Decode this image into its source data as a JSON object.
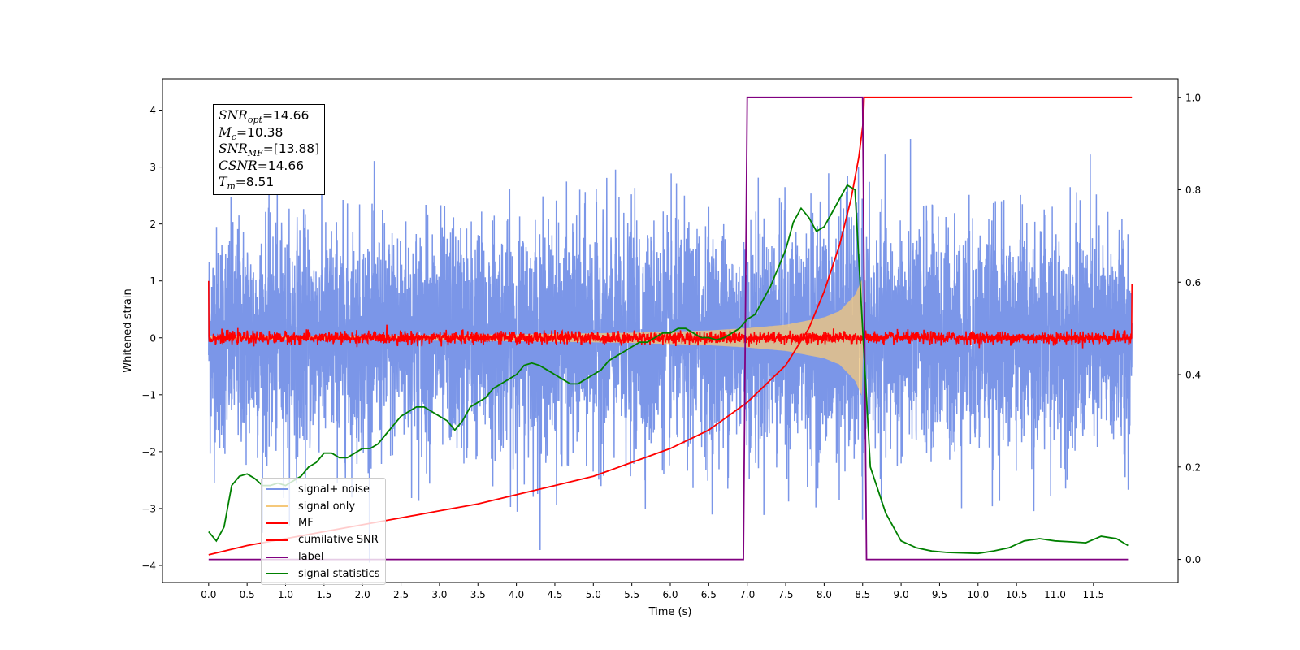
{
  "chart_data": {
    "type": "line",
    "xlabel": "Time (s)",
    "ylabel": "Whitened strain",
    "xlim": [
      -0.6,
      12.6
    ],
    "ylim": [
      -4.3,
      4.55
    ],
    "y2lim": [
      -0.05,
      1.04
    ],
    "xticks": [
      0.0,
      0.5,
      1.0,
      1.5,
      2.0,
      2.5,
      3.0,
      3.5,
      4.0,
      4.5,
      5.0,
      5.5,
      6.0,
      6.5,
      7.0,
      7.5,
      8.0,
      8.5,
      9.0,
      9.5,
      10.0,
      10.5,
      11.0,
      11.5
    ],
    "xtick_labels": [
      "0.0",
      "0.5",
      "1.0",
      "1.5",
      "2.0",
      "2.5",
      "3.0",
      "3.5",
      "4.0",
      "4.5",
      "5.0",
      "5.5",
      "6.0",
      "6.5",
      "7.0",
      "7.5",
      "8.0",
      "8.5",
      "9.0",
      "9.5",
      "10.0",
      "10.5",
      "11.0",
      "11.5"
    ],
    "yticks": [
      -4,
      -3,
      -2,
      -1,
      0,
      1,
      2,
      3,
      4
    ],
    "ytick_labels": [
      "−4",
      "−3",
      "−2",
      "−1",
      "0",
      "1",
      "2",
      "3",
      "4"
    ],
    "y2ticks": [
      0.0,
      0.2,
      0.4,
      0.6,
      0.8,
      1.0
    ],
    "y2tick_labels": [
      "0.0",
      "0.2",
      "0.4",
      "0.6",
      "0.8",
      "1.0"
    ],
    "stats": [
      {
        "base": "SNR",
        "sub": "opt",
        "value": "=14.66"
      },
      {
        "base": "M",
        "sub": "c",
        "value": "=10.38"
      },
      {
        "base": "SNR",
        "sub": "MF",
        "value": "=[13.88]"
      },
      {
        "base": "CSNR",
        "sub": "",
        "value": "=14.66"
      },
      {
        "base": "T",
        "sub": "m",
        "value": "=8.51"
      }
    ],
    "legend_position": "lower-left",
    "series": [
      {
        "name": "signal+ noise",
        "color": "#7b96e8",
        "axis": "left",
        "description_values": {
          "x_range": [
            0.0,
            12.0
          ],
          "typical_amplitude": 1.3,
          "peak_max": 4.1,
          "peak_min": -3.95
        }
      },
      {
        "name": "signal only",
        "color": "#f5c87a",
        "axis": "left",
        "envelope": {
          "x": [
            0.0,
            2.0,
            4.0,
            5.5,
            6.5,
            7.0,
            7.5,
            8.0,
            8.2,
            8.4,
            8.5,
            8.51
          ],
          "amplitude": [
            0.03,
            0.04,
            0.06,
            0.09,
            0.13,
            0.17,
            0.23,
            0.36,
            0.47,
            0.75,
            1.05,
            0.0
          ]
        }
      },
      {
        "name": "MF",
        "color": "#ff0000",
        "axis": "left",
        "description_values": {
          "baseline": 0.0,
          "noise_amplitude": 0.12,
          "start_value": 1.0,
          "end_value": 0.95
        }
      },
      {
        "name": "cumilative SNR",
        "color": "#ff0000",
        "axis": "right",
        "x": [
          0.0,
          0.5,
          1.0,
          1.5,
          2.0,
          2.5,
          3.0,
          3.5,
          4.0,
          4.5,
          5.0,
          5.5,
          6.0,
          6.5,
          7.0,
          7.5,
          7.8,
          8.0,
          8.2,
          8.35,
          8.45,
          8.51,
          8.52,
          12.0
        ],
        "y": [
          0.01,
          0.03,
          0.045,
          0.06,
          0.075,
          0.09,
          0.105,
          0.12,
          0.14,
          0.16,
          0.18,
          0.21,
          0.24,
          0.28,
          0.34,
          0.42,
          0.5,
          0.58,
          0.68,
          0.78,
          0.87,
          0.95,
          1.0,
          1.0
        ]
      },
      {
        "name": "label",
        "color": "#800080",
        "axis": "right",
        "x": [
          0.0,
          6.95,
          7.0,
          8.5,
          8.55,
          11.95
        ],
        "y": [
          0.0,
          0.0,
          1.0,
          1.0,
          0.0,
          0.0
        ]
      },
      {
        "name": "signal statistics",
        "color": "#008000",
        "axis": "right",
        "x": [
          0.0,
          0.1,
          0.2,
          0.3,
          0.4,
          0.5,
          0.6,
          0.7,
          0.8,
          0.9,
          1.0,
          1.1,
          1.2,
          1.3,
          1.4,
          1.5,
          1.6,
          1.7,
          1.8,
          1.9,
          2.0,
          2.1,
          2.2,
          2.3,
          2.4,
          2.5,
          2.6,
          2.7,
          2.8,
          2.9,
          3.0,
          3.1,
          3.2,
          3.3,
          3.4,
          3.5,
          3.6,
          3.7,
          3.8,
          3.9,
          4.0,
          4.1,
          4.2,
          4.3,
          4.4,
          4.5,
          4.6,
          4.7,
          4.8,
          4.9,
          5.0,
          5.1,
          5.2,
          5.3,
          5.4,
          5.5,
          5.6,
          5.7,
          5.8,
          5.9,
          6.0,
          6.1,
          6.2,
          6.3,
          6.4,
          6.5,
          6.6,
          6.7,
          6.8,
          6.9,
          7.0,
          7.1,
          7.2,
          7.3,
          7.4,
          7.5,
          7.6,
          7.7,
          7.8,
          7.9,
          8.0,
          8.1,
          8.2,
          8.3,
          8.4,
          8.5,
          8.6,
          8.7,
          8.8,
          9.0,
          9.2,
          9.4,
          9.6,
          9.8,
          10.0,
          10.2,
          10.4,
          10.6,
          10.8,
          11.0,
          11.2,
          11.4,
          11.6,
          11.8,
          11.95
        ],
        "y": [
          0.06,
          0.04,
          0.07,
          0.16,
          0.18,
          0.185,
          0.175,
          0.16,
          0.16,
          0.165,
          0.16,
          0.17,
          0.18,
          0.2,
          0.21,
          0.23,
          0.23,
          0.22,
          0.22,
          0.23,
          0.24,
          0.24,
          0.25,
          0.27,
          0.29,
          0.31,
          0.32,
          0.33,
          0.33,
          0.32,
          0.31,
          0.3,
          0.28,
          0.3,
          0.33,
          0.34,
          0.35,
          0.37,
          0.38,
          0.39,
          0.4,
          0.42,
          0.425,
          0.42,
          0.41,
          0.4,
          0.39,
          0.38,
          0.38,
          0.39,
          0.4,
          0.41,
          0.43,
          0.44,
          0.45,
          0.46,
          0.47,
          0.47,
          0.48,
          0.49,
          0.49,
          0.5,
          0.5,
          0.49,
          0.48,
          0.48,
          0.475,
          0.48,
          0.49,
          0.5,
          0.52,
          0.53,
          0.56,
          0.59,
          0.63,
          0.67,
          0.73,
          0.76,
          0.74,
          0.71,
          0.72,
          0.75,
          0.78,
          0.81,
          0.8,
          0.5,
          0.2,
          0.15,
          0.1,
          0.04,
          0.025,
          0.018,
          0.015,
          0.014,
          0.013,
          0.018,
          0.025,
          0.04,
          0.045,
          0.04,
          0.038,
          0.036,
          0.05,
          0.045,
          0.03
        ]
      }
    ]
  }
}
